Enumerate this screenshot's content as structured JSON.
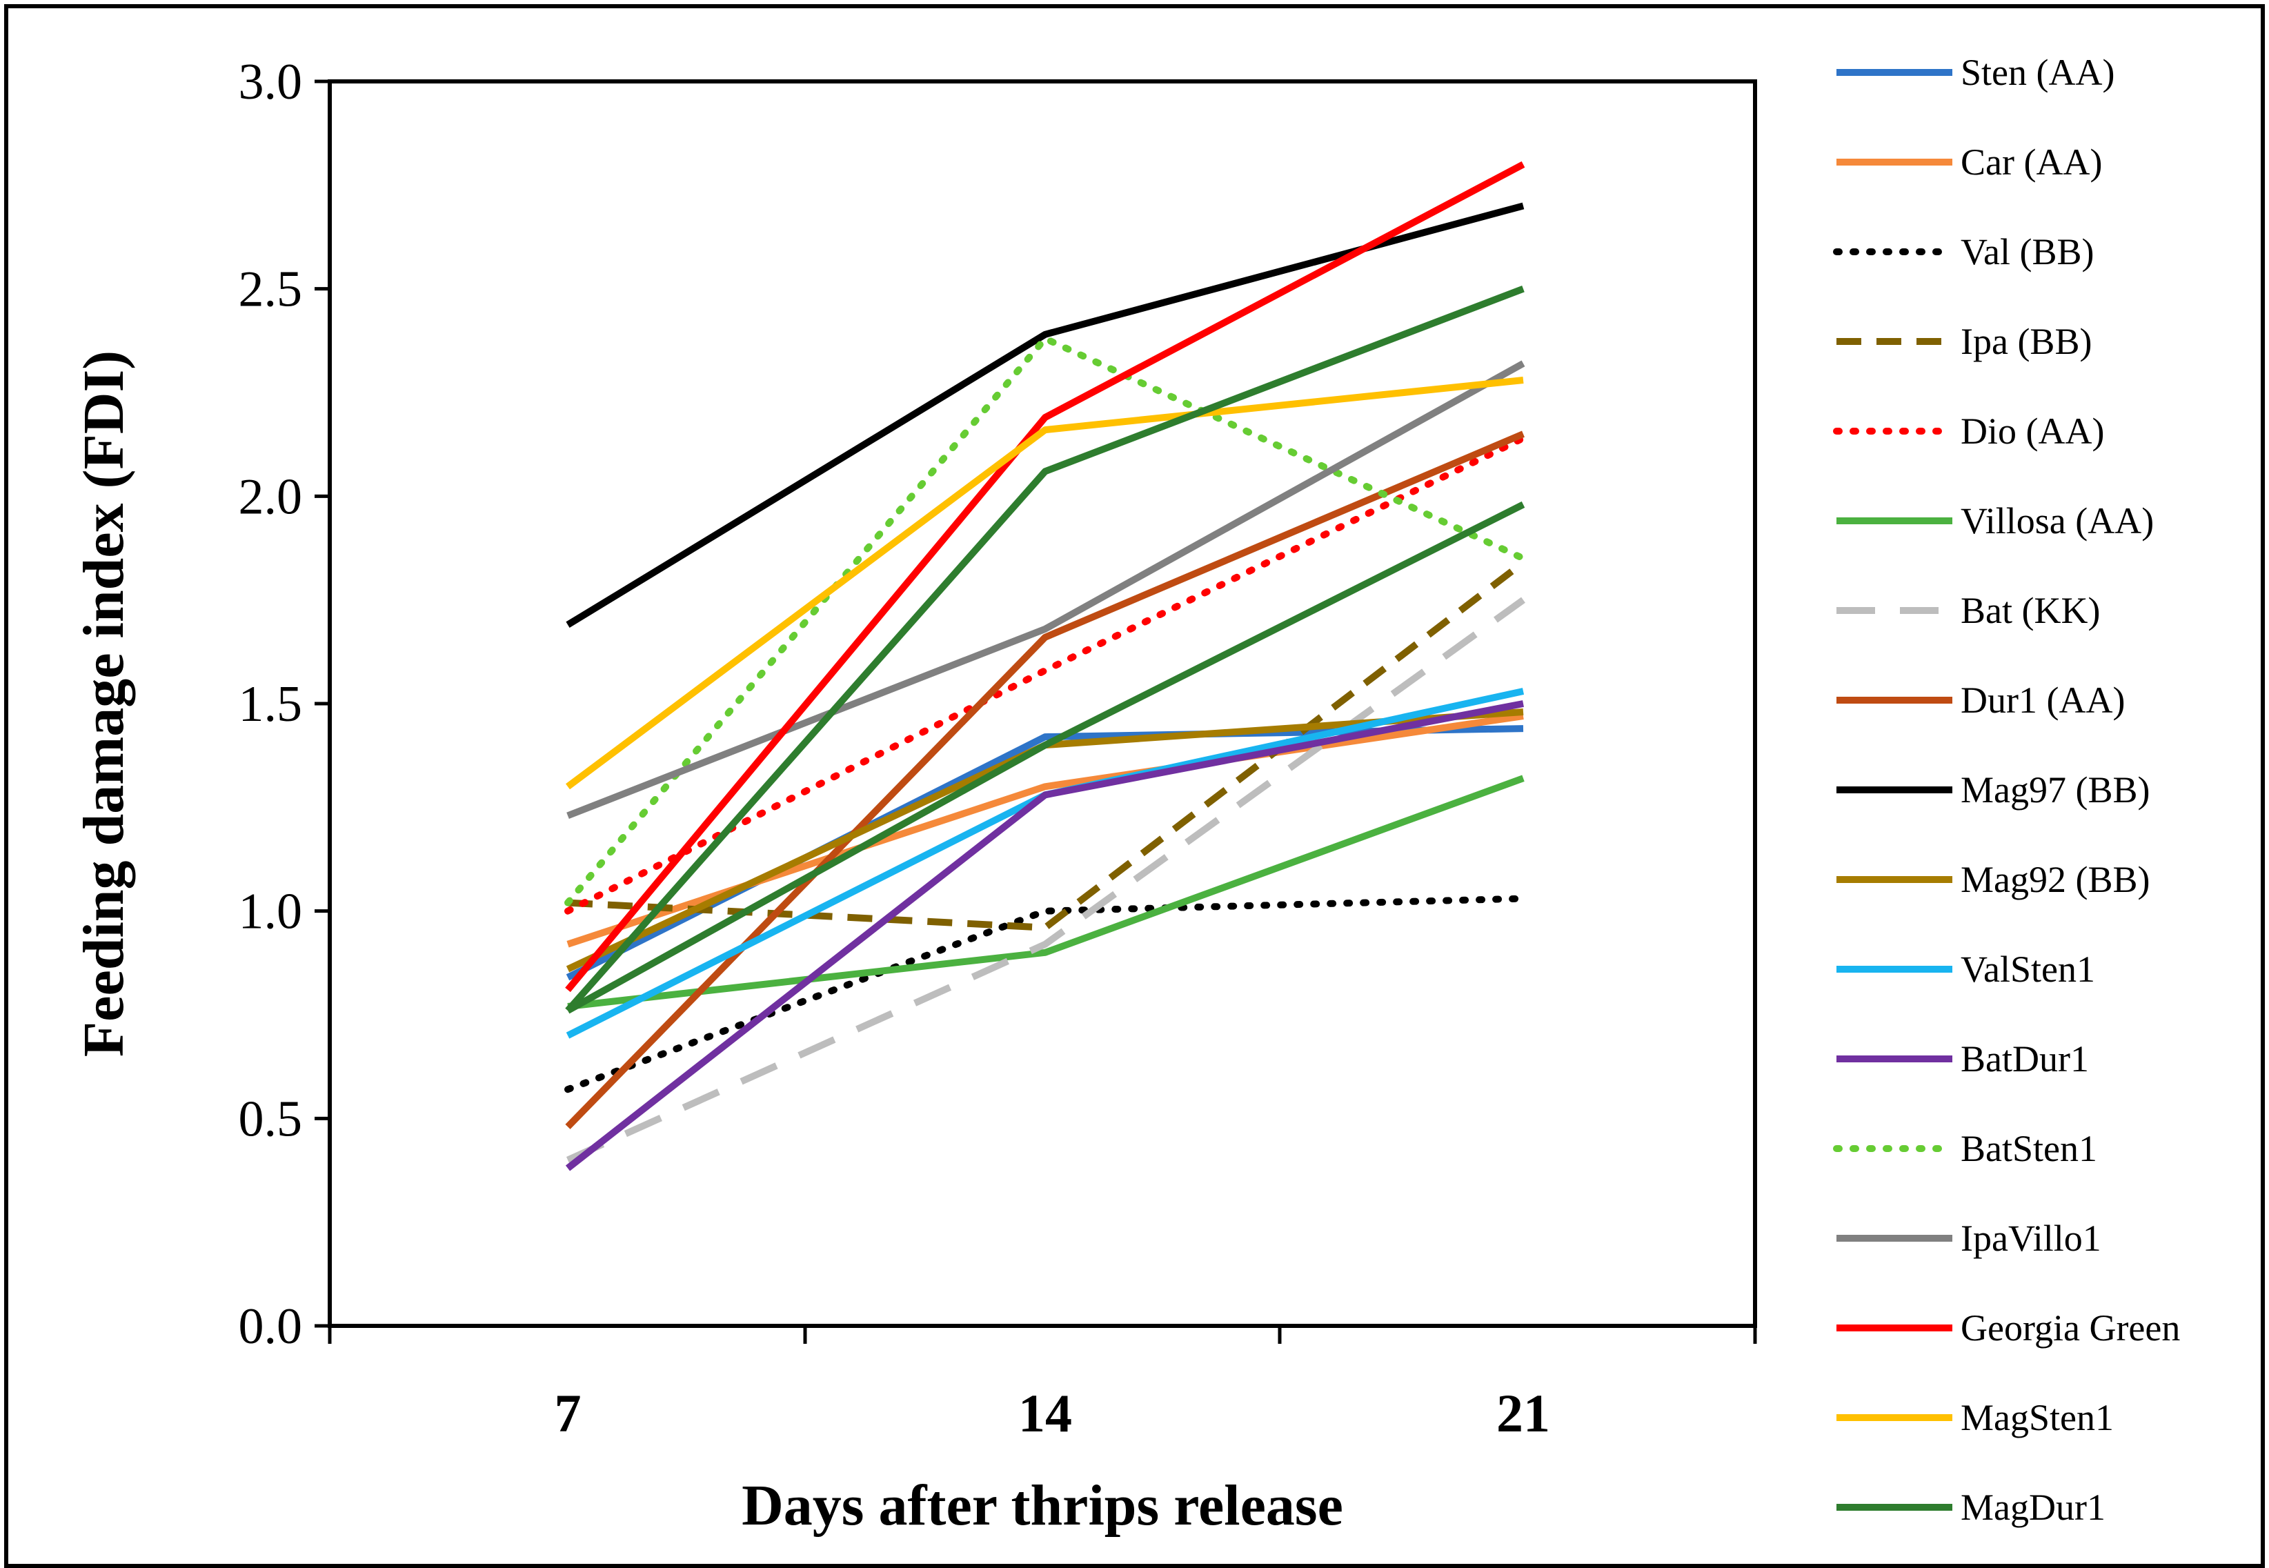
{
  "chart_data": {
    "type": "line",
    "title": "",
    "xlabel": "Days after thrips release",
    "ylabel": "Feeding damage index (FDI)",
    "x": [
      7,
      14,
      21
    ],
    "x_tick_labels": [
      "7",
      "14",
      "21"
    ],
    "ylim": [
      0,
      3
    ],
    "y_ticks": [
      "0.0",
      "0.5",
      "1.0",
      "1.5",
      "2.0",
      "2.5",
      "3.0"
    ],
    "grid": false,
    "legend_position": "right",
    "series": [
      {
        "name": "Sten (AA)",
        "values": [
          0.84,
          1.42,
          1.44
        ],
        "color": "#2E74C8",
        "dash": "solid"
      },
      {
        "name": "Car (AA)",
        "values": [
          0.92,
          1.3,
          1.47
        ],
        "color": "#F5893A",
        "dash": "solid"
      },
      {
        "name": "Val (BB)",
        "values": [
          0.57,
          1.0,
          1.03
        ],
        "color": "#000000",
        "dash": "dot"
      },
      {
        "name": "Ipa (BB)",
        "values": [
          1.02,
          0.96,
          1.84
        ],
        "color": "#7F6000",
        "dash": "dash"
      },
      {
        "name": "Dio (AA)",
        "values": [
          1.0,
          1.58,
          2.14
        ],
        "color": "#FF0000",
        "dash": "dot"
      },
      {
        "name": "Villosa (AA)",
        "values": [
          0.77,
          0.9,
          1.32
        ],
        "color": "#4BB140",
        "dash": "solid"
      },
      {
        "name": "Bat (KK)",
        "values": [
          0.4,
          0.92,
          1.75
        ],
        "color": "#BDBDBD",
        "dash": "longdash"
      },
      {
        "name": "Dur1 (AA)",
        "values": [
          0.48,
          1.66,
          2.15
        ],
        "color": "#BF4B12",
        "dash": "solid"
      },
      {
        "name": "Mag97 (BB)",
        "values": [
          1.69,
          2.39,
          2.7
        ],
        "color": "#000000",
        "dash": "solid"
      },
      {
        "name": "Mag92 (BB)",
        "values": [
          0.86,
          1.4,
          1.48
        ],
        "color": "#A67C00",
        "dash": "solid"
      },
      {
        "name": "ValSten1",
        "values": [
          0.7,
          1.28,
          1.53
        ],
        "color": "#18B4F0",
        "dash": "solid"
      },
      {
        "name": "BatDur1",
        "values": [
          0.38,
          1.28,
          1.5
        ],
        "color": "#7030A0",
        "dash": "solid"
      },
      {
        "name": "BatSten1",
        "values": [
          1.02,
          2.38,
          1.85
        ],
        "color": "#66CC33",
        "dash": "dot"
      },
      {
        "name": "IpaVillo1",
        "values": [
          1.23,
          1.68,
          2.32
        ],
        "color": "#808080",
        "dash": "solid"
      },
      {
        "name": "Georgia Green",
        "values": [
          0.81,
          2.19,
          2.8
        ],
        "color": "#FF0000",
        "dash": "solid"
      },
      {
        "name": "MagSten1",
        "values": [
          1.3,
          2.16,
          2.28
        ],
        "color": "#FFC000",
        "dash": "solid"
      },
      {
        "name": "MagDur1",
        "values": [
          0.76,
          2.06,
          2.5
        ],
        "color": "#2E7D2E",
        "dash": "solid"
      },
      {
        "name": "MagDur1",
        "values": [
          0.76,
          1.4,
          1.98
        ],
        "color": "#2E7D2E",
        "dash": "solid",
        "legend": false
      }
    ]
  }
}
